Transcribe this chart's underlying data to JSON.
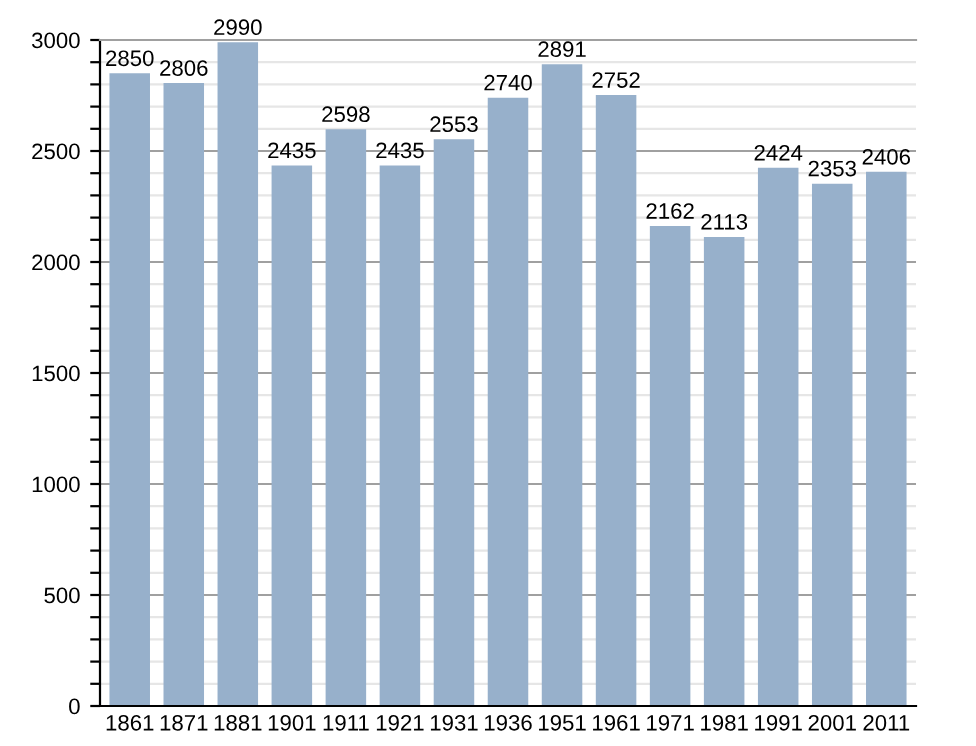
{
  "chart_data": {
    "type": "bar",
    "categories": [
      "1861",
      "1871",
      "1881",
      "1901",
      "1911",
      "1921",
      "1931",
      "1936",
      "1951",
      "1961",
      "1971",
      "1981",
      "1991",
      "2001",
      "2011"
    ],
    "values": [
      2850,
      2806,
      2990,
      2435,
      2598,
      2435,
      2553,
      2740,
      2891,
      2752,
      2162,
      2113,
      2424,
      2353,
      2406
    ],
    "color": "#97b0cb",
    "data_labels": true,
    "grid": "y",
    "ylim": [
      0,
      3000
    ],
    "yticks": [
      0,
      {
        "value": 100,
        "label": null
      },
      {
        "value": 200,
        "label": null
      },
      {
        "value": 300,
        "label": null
      },
      {
        "value": 400,
        "label": null
      },
      500,
      {
        "value": 600,
        "label": null
      },
      {
        "value": 700,
        "label": null
      },
      {
        "value": 800,
        "label": null
      },
      {
        "value": 900,
        "label": null
      },
      1000,
      {
        "value": 1100,
        "label": null
      },
      {
        "value": 1200,
        "label": null
      },
      {
        "value": 1300,
        "label": null
      },
      {
        "value": 1400,
        "label": null
      },
      1500,
      {
        "value": 1600,
        "label": null
      },
      {
        "value": 1700,
        "label": null
      },
      {
        "value": 1800,
        "label": null
      },
      {
        "value": 1900,
        "label": null
      },
      2000,
      {
        "value": 2100,
        "label": null
      },
      {
        "value": 2200,
        "label": null
      },
      {
        "value": 2300,
        "label": null
      },
      {
        "value": 2400,
        "label": null
      },
      2500,
      {
        "value": 2600,
        "label": null
      },
      {
        "value": 2700,
        "label": null
      },
      {
        "value": 2800,
        "label": null
      },
      {
        "value": 2900,
        "label": null
      },
      3000
    ]
  }
}
